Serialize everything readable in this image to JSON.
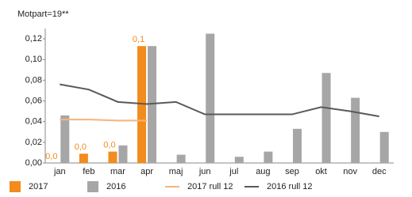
{
  "chart_data": {
    "type": "bar",
    "title": "Motpart=19**",
    "categories": [
      "jan",
      "feb",
      "mar",
      "apr",
      "maj",
      "jun",
      "jul",
      "aug",
      "sep",
      "okt",
      "nov",
      "dec"
    ],
    "series": [
      {
        "name": "2017",
        "type": "bar",
        "color": "#f28c1c",
        "values": [
          0,
          0.009,
          0.011,
          0.113,
          null,
          null,
          null,
          null,
          null,
          null,
          null,
          null
        ],
        "value_labels": [
          "0,0",
          "0,0",
          "0,0",
          "0,1",
          null,
          null,
          null,
          null,
          null,
          null,
          null,
          null
        ]
      },
      {
        "name": "2016",
        "type": "bar",
        "color": "#a6a6a6",
        "values": [
          0.046,
          null,
          0.017,
          0.113,
          0.008,
          0.125,
          0.006,
          0.011,
          0.033,
          0.087,
          0.063,
          0.03
        ]
      },
      {
        "name": "2017 rull 12",
        "type": "line",
        "color": "#f7b37a",
        "values": [
          0.042,
          0.042,
          0.041,
          0.041,
          null,
          null,
          null,
          null,
          null,
          null,
          null,
          null
        ]
      },
      {
        "name": "2016 rull 12",
        "type": "line",
        "color": "#595959",
        "values": [
          0.076,
          0.071,
          0.059,
          0.057,
          0.059,
          0.047,
          0.047,
          0.047,
          0.047,
          0.054,
          0.05,
          0.045
        ]
      }
    ],
    "ylim": [
      0,
      0.13
    ],
    "yticks": [
      {
        "value": 0,
        "label": "0,00"
      },
      {
        "value": 0.02,
        "label": "0,02"
      },
      {
        "value": 0.04,
        "label": "0,04"
      },
      {
        "value": 0.06,
        "label": "0,06"
      },
      {
        "value": 0.08,
        "label": "0,08"
      },
      {
        "value": 0.1,
        "label": "0,10"
      },
      {
        "value": 0.12,
        "label": "0,12"
      }
    ],
    "grid": false,
    "legend": "bottom"
  }
}
